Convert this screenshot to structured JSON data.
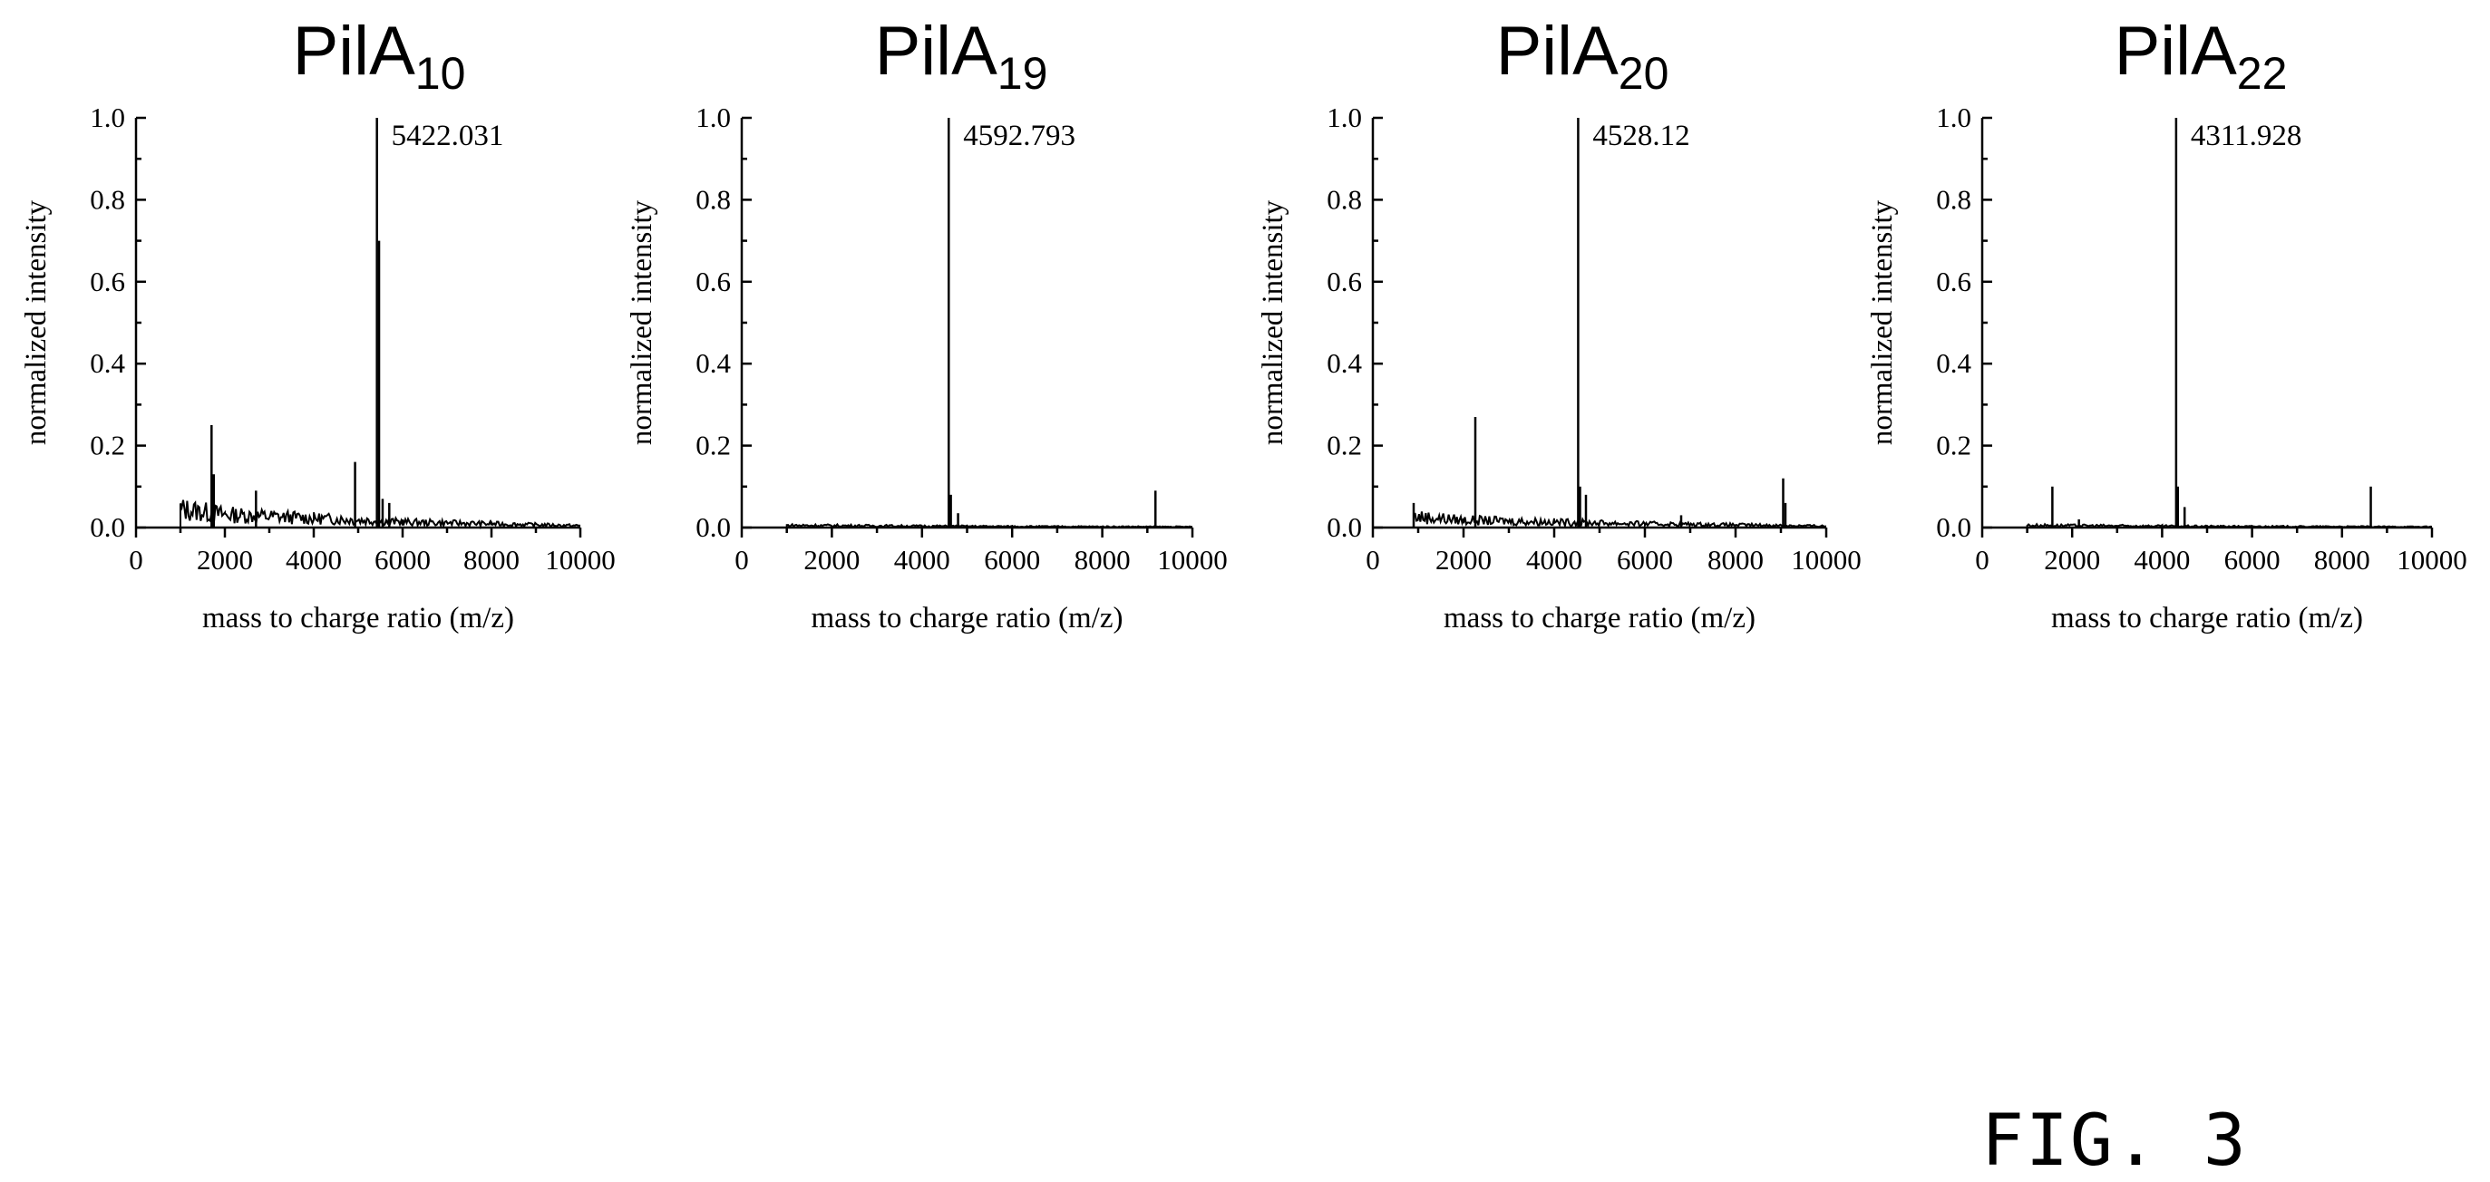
{
  "figure_label": "FIG. 3",
  "chart_data": [
    {
      "type": "line",
      "title": "PilA",
      "title_subscript": "10",
      "xlabel": "mass to charge ratio (m/z)",
      "ylabel": "normalized intensity",
      "xlim": [
        0,
        10000
      ],
      "ylim": [
        0,
        1.0
      ],
      "x_ticks": [
        "0",
        "2000",
        "4000",
        "6000",
        "8000",
        "10000"
      ],
      "y_ticks": [
        "0.0",
        "0.2",
        "0.4",
        "0.6",
        "0.8",
        "1.0"
      ],
      "peak_label": "5422.031",
      "peaks": [
        {
          "x": 1700,
          "y": 0.25
        },
        {
          "x": 1750,
          "y": 0.13
        },
        {
          "x": 2700,
          "y": 0.09
        },
        {
          "x": 4930,
          "y": 0.16
        },
        {
          "x": 5422.031,
          "y": 1.0
        },
        {
          "x": 5470,
          "y": 0.7
        },
        {
          "x": 5550,
          "y": 0.07
        },
        {
          "x": 5700,
          "y": 0.06
        }
      ],
      "baseline": {
        "x": [
          0,
          1000,
          1000,
          2000,
          4000,
          6000,
          8000,
          10000
        ],
        "y": [
          0,
          0,
          0.05,
          0.035,
          0.025,
          0.015,
          0.01,
          0.005
        ]
      }
    },
    {
      "type": "line",
      "title": "PilA",
      "title_subscript": "19",
      "xlabel": "mass to charge ratio (m/z)",
      "ylabel": "normalized intensity",
      "xlim": [
        0,
        10000
      ],
      "ylim": [
        0,
        1.0
      ],
      "x_ticks": [
        "0",
        "2000",
        "4000",
        "6000",
        "8000",
        "10000"
      ],
      "y_ticks": [
        "0.0",
        "0.2",
        "0.4",
        "0.6",
        "0.8",
        "1.0"
      ],
      "peak_label": "4592.793",
      "peaks": [
        {
          "x": 4592.793,
          "y": 1.0
        },
        {
          "x": 4640,
          "y": 0.08
        },
        {
          "x": 4800,
          "y": 0.035
        },
        {
          "x": 9180,
          "y": 0.09
        }
      ],
      "baseline": {
        "x": [
          0,
          1000,
          1000,
          4000,
          6000,
          10000
        ],
        "y": [
          0,
          0,
          0.006,
          0.004,
          0.003,
          0.002
        ]
      }
    },
    {
      "type": "line",
      "title": "PilA",
      "title_subscript": "20",
      "xlabel": "mass to charge ratio (m/z)",
      "ylabel": "normalized intensity",
      "xlim": [
        0,
        10000
      ],
      "ylim": [
        0,
        1.0
      ],
      "x_ticks": [
        "0",
        "2000",
        "4000",
        "6000",
        "8000",
        "10000"
      ],
      "y_ticks": [
        "0.0",
        "0.2",
        "0.4",
        "0.6",
        "0.8",
        "1.0"
      ],
      "peak_label": "4528.12",
      "peaks": [
        {
          "x": 900,
          "y": 0.06
        },
        {
          "x": 2260,
          "y": 0.27
        },
        {
          "x": 4528.12,
          "y": 1.0
        },
        {
          "x": 4570,
          "y": 0.1
        },
        {
          "x": 4700,
          "y": 0.08
        },
        {
          "x": 6800,
          "y": 0.03
        },
        {
          "x": 9050,
          "y": 0.12
        },
        {
          "x": 9100,
          "y": 0.06
        }
      ],
      "baseline": {
        "x": [
          0,
          900,
          900,
          2000,
          4000,
          6000,
          8000,
          10000
        ],
        "y": [
          0,
          0,
          0.03,
          0.02,
          0.015,
          0.01,
          0.007,
          0.004
        ]
      }
    },
    {
      "type": "line",
      "title": "PilA",
      "title_subscript": "22",
      "xlabel": "mass to charge ratio (m/z)",
      "ylabel": "normalized intensity",
      "xlim": [
        0,
        10000
      ],
      "ylim": [
        0,
        1.0
      ],
      "x_ticks": [
        "0",
        "2000",
        "4000",
        "6000",
        "8000",
        "10000"
      ],
      "y_ticks": [
        "0.0",
        "0.2",
        "0.4",
        "0.6",
        "0.8",
        "1.0"
      ],
      "peak_label": "4311.928",
      "peaks": [
        {
          "x": 1560,
          "y": 0.1
        },
        {
          "x": 2150,
          "y": 0.02
        },
        {
          "x": 4311.928,
          "y": 1.0
        },
        {
          "x": 4350,
          "y": 0.1
        },
        {
          "x": 4500,
          "y": 0.05
        },
        {
          "x": 8640,
          "y": 0.1
        }
      ],
      "baseline": {
        "x": [
          0,
          1000,
          1000,
          4000,
          6000,
          10000
        ],
        "y": [
          0,
          0,
          0.006,
          0.004,
          0.003,
          0.002
        ]
      }
    }
  ]
}
